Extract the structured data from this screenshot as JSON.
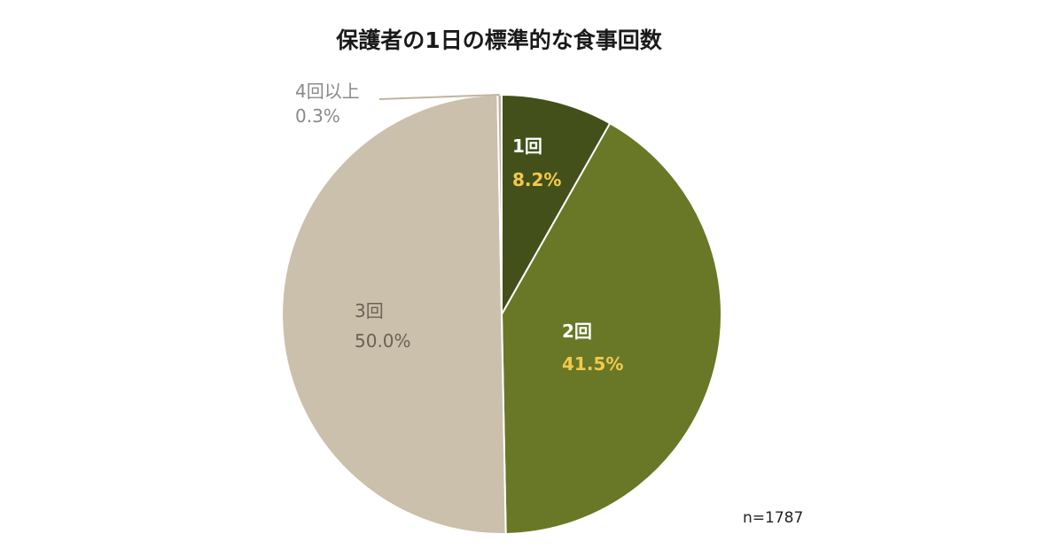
{
  "chart_data": {
    "type": "pie",
    "title": "保護者の1日の標準的な食事回数",
    "note": "n=1787",
    "start": "12 o'clock",
    "direction": "clockwise",
    "slices": [
      {
        "label": "1回",
        "value": 8.2,
        "value_text": "8.2%",
        "color": "#43501a",
        "label_color": "#ffffff",
        "value_color": "#f2c94c"
      },
      {
        "label": "2回",
        "value": 41.5,
        "value_text": "41.5%",
        "color": "#687827",
        "label_color": "#ffffff",
        "value_color": "#f2c94c"
      },
      {
        "label": "3回",
        "value": 50.0,
        "value_text": "50.0%",
        "color": "#cbc0ab",
        "label_color": "#6b6256",
        "value_color": "#6b6256"
      },
      {
        "label": "4回以上",
        "value": 0.3,
        "value_text": "0.3%",
        "color": "#bfb49e",
        "label_color": "#8a8a8a",
        "value_color": "#8a8a8a"
      }
    ]
  }
}
